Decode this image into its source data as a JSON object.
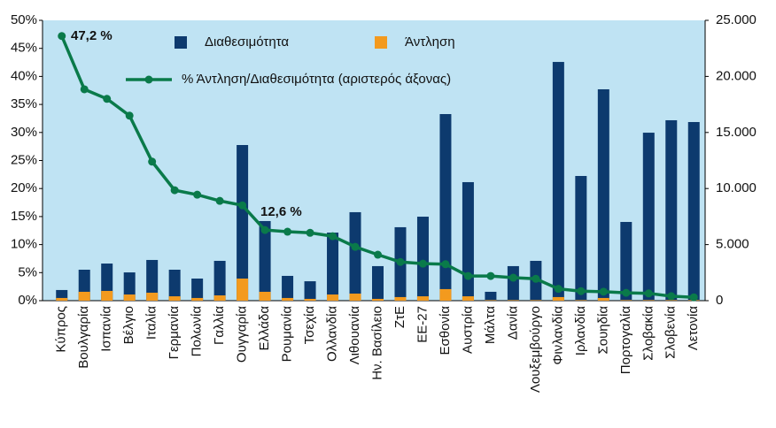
{
  "chart_data": {
    "type": "bar_line",
    "categories": [
      "Κύπρος",
      "Βουλγαρία",
      "Ισπανία",
      "Βέλγιο",
      "Ιταλία",
      "Γερμανία",
      "Πολωνία",
      "Γαλλία",
      "Ουγγαρία",
      "Ελλάδα",
      "Ρουμανία",
      "Τσεχία",
      "Ολλανδία",
      "Λιθουανία",
      "Ην. Βασίλειο",
      "ΖτΕ",
      "ΕΕ-27",
      "Εσθονία",
      "Αυστρία",
      "Μάλτα",
      "Δανία",
      "Λουξεμβούργο",
      "Φινλανδία",
      "Ιρλανδία",
      "Σουηδία",
      "Πορτογαλία",
      "Σλοβακία",
      "Σλοβενία",
      "Λετονία"
    ],
    "series": [
      {
        "name": "Διαθεσιμότητα",
        "color": "#0d3a6e",
        "axis": "y2",
        "kind": "bar",
        "values": [
          950,
          2760,
          3310,
          2520,
          3630,
          2760,
          1970,
          3550,
          13880,
          7100,
          2210,
          1730,
          6070,
          7890,
          3080,
          6550,
          7490,
          16640,
          10570,
          790,
          3080,
          3550,
          21290,
          11120,
          18850,
          7020,
          14980,
          16090,
          15930
        ]
      },
      {
        "name": "Άντληση",
        "color": "#f39a1e",
        "axis": "y2",
        "kind": "bar",
        "values": [
          240,
          790,
          870,
          550,
          710,
          390,
          240,
          470,
          1970,
          790,
          240,
          160,
          550,
          630,
          160,
          320,
          390,
          1030,
          390,
          50,
          50,
          50,
          320,
          50,
          240,
          50,
          50,
          50,
          50
        ]
      },
      {
        "name": "% Άντληση/Διαθεσιμότητα (αριστερός άξονας)",
        "color": "#0a7a4a",
        "axis": "y",
        "kind": "line",
        "values": [
          47.2,
          37.7,
          36.0,
          33.0,
          24.8,
          19.7,
          18.9,
          17.8,
          17.0,
          12.6,
          12.3,
          12.1,
          11.5,
          9.6,
          8.2,
          6.9,
          6.6,
          6.5,
          4.4,
          4.4,
          4.1,
          3.9,
          2.1,
          1.7,
          1.6,
          1.4,
          1.3,
          0.8,
          0.6
        ]
      }
    ],
    "ylim": [
      0,
      50
    ],
    "yticks": [
      {
        "value": 0,
        "label": "0%"
      },
      {
        "value": 5,
        "label": "5%"
      },
      {
        "value": 10,
        "label": "10%"
      },
      {
        "value": 15,
        "label": "15%"
      },
      {
        "value": 20,
        "label": "20%"
      },
      {
        "value": 25,
        "label": "25%"
      },
      {
        "value": 30,
        "label": "30%"
      },
      {
        "value": 35,
        "label": "35%"
      },
      {
        "value": 40,
        "label": "40%"
      },
      {
        "value": 45,
        "label": "45%"
      },
      {
        "value": 50,
        "label": "50%"
      }
    ],
    "y2lim": [
      0,
      25000
    ],
    "y2ticks": [
      0,
      {
        "value": 5000,
        "label": "5.000"
      },
      {
        "value": 10000,
        "label": "10.000"
      },
      {
        "value": 15000,
        "label": "15.000"
      },
      {
        "value": 20000,
        "label": "20.000"
      },
      {
        "value": 25000,
        "label": "25.000"
      }
    ],
    "annotations": [
      "47,2  %",
      "12,6  %"
    ],
    "background": "#bfe3f3"
  }
}
